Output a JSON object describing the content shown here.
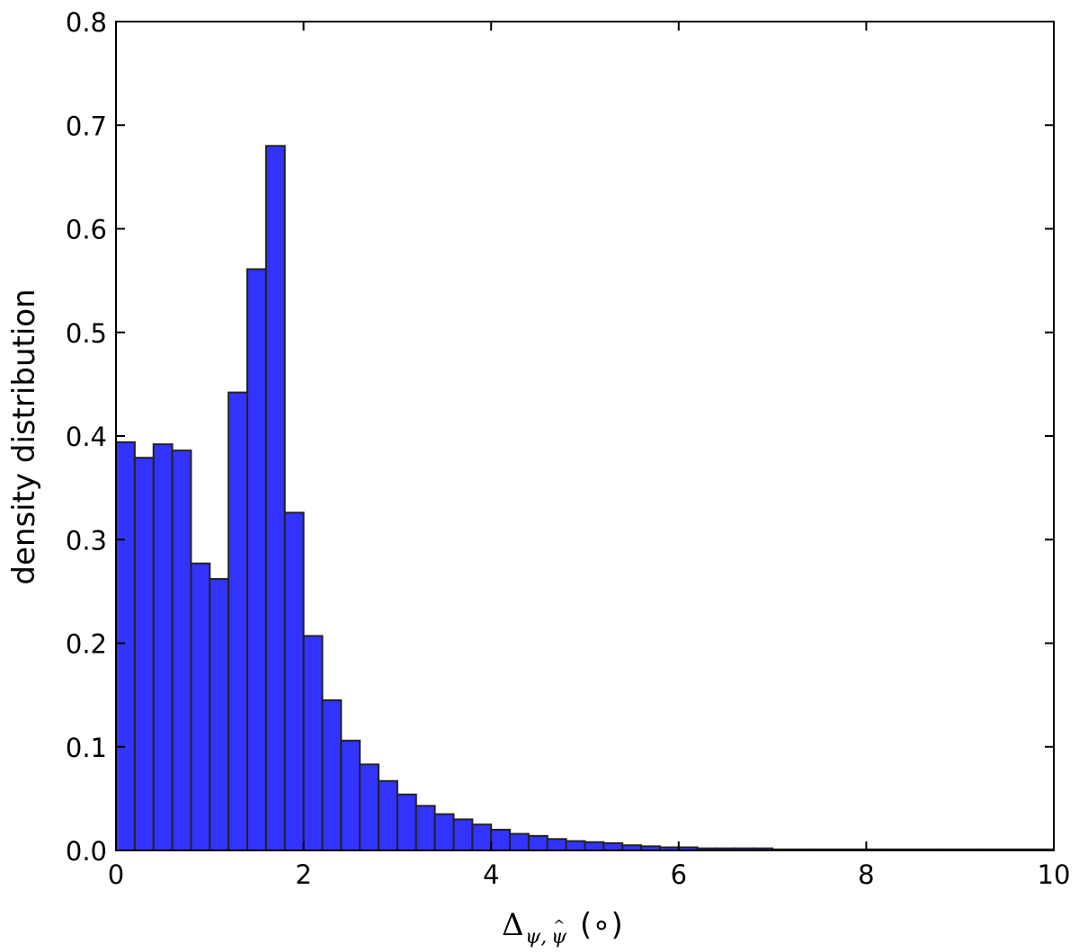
{
  "chart_data": {
    "type": "bar",
    "title": "",
    "xlabel": "Δψ,ψ̂ (°)",
    "xlabel_parts": {
      "symbol": "Δ",
      "sub1": "ψ,",
      "sub2": "ψ",
      "sub2_hat": "^",
      "unit": "(∘)"
    },
    "ylabel": "density distribution",
    "xlim": [
      0,
      10
    ],
    "ylim": [
      0,
      0.8
    ],
    "xticks": [
      0,
      2,
      4,
      6,
      8,
      10
    ],
    "xtick_labels": [
      "0",
      "2",
      "4",
      "6",
      "8",
      "10"
    ],
    "yticks": [
      0,
      0.1,
      0.2,
      0.3,
      0.4,
      0.5,
      0.6,
      0.7,
      0.8
    ],
    "ytick_labels": [
      "0.0",
      "0.1",
      "0.2",
      "0.3",
      "0.4",
      "0.5",
      "0.6",
      "0.7",
      "0.8"
    ],
    "bin_width": 0.2,
    "bins_start": [
      0.0,
      0.2,
      0.4,
      0.6,
      0.8,
      1.0,
      1.2,
      1.4,
      1.6,
      1.8,
      2.0,
      2.2,
      2.4,
      2.6,
      2.8,
      3.0,
      3.2,
      3.4,
      3.6,
      3.8,
      4.0,
      4.2,
      4.4,
      4.6,
      4.8,
      5.0,
      5.2,
      5.4,
      5.6,
      5.8,
      6.0,
      6.2,
      6.4,
      6.6,
      6.8,
      7.0,
      7.2,
      7.4,
      7.6,
      7.8,
      8.0,
      8.2,
      8.4,
      8.6,
      8.8,
      9.0,
      9.2,
      9.4,
      9.6,
      9.8
    ],
    "values": [
      0.394,
      0.379,
      0.392,
      0.386,
      0.277,
      0.262,
      0.442,
      0.561,
      0.68,
      0.326,
      0.207,
      0.145,
      0.106,
      0.083,
      0.067,
      0.054,
      0.043,
      0.035,
      0.03,
      0.025,
      0.02,
      0.016,
      0.014,
      0.011,
      0.009,
      0.008,
      0.007,
      0.005,
      0.004,
      0.003,
      0.003,
      0.002,
      0.002,
      0.002,
      0.002,
      0.001,
      0.001,
      0.001,
      0.001,
      0.001,
      0.001,
      0.001,
      0.001,
      0.001,
      0.001,
      0.001,
      0.001,
      0.001,
      0.001,
      0.001
    ],
    "bar_color": "#3333ff",
    "bar_edge_color": "#222222",
    "grid": false,
    "legend": "none"
  }
}
